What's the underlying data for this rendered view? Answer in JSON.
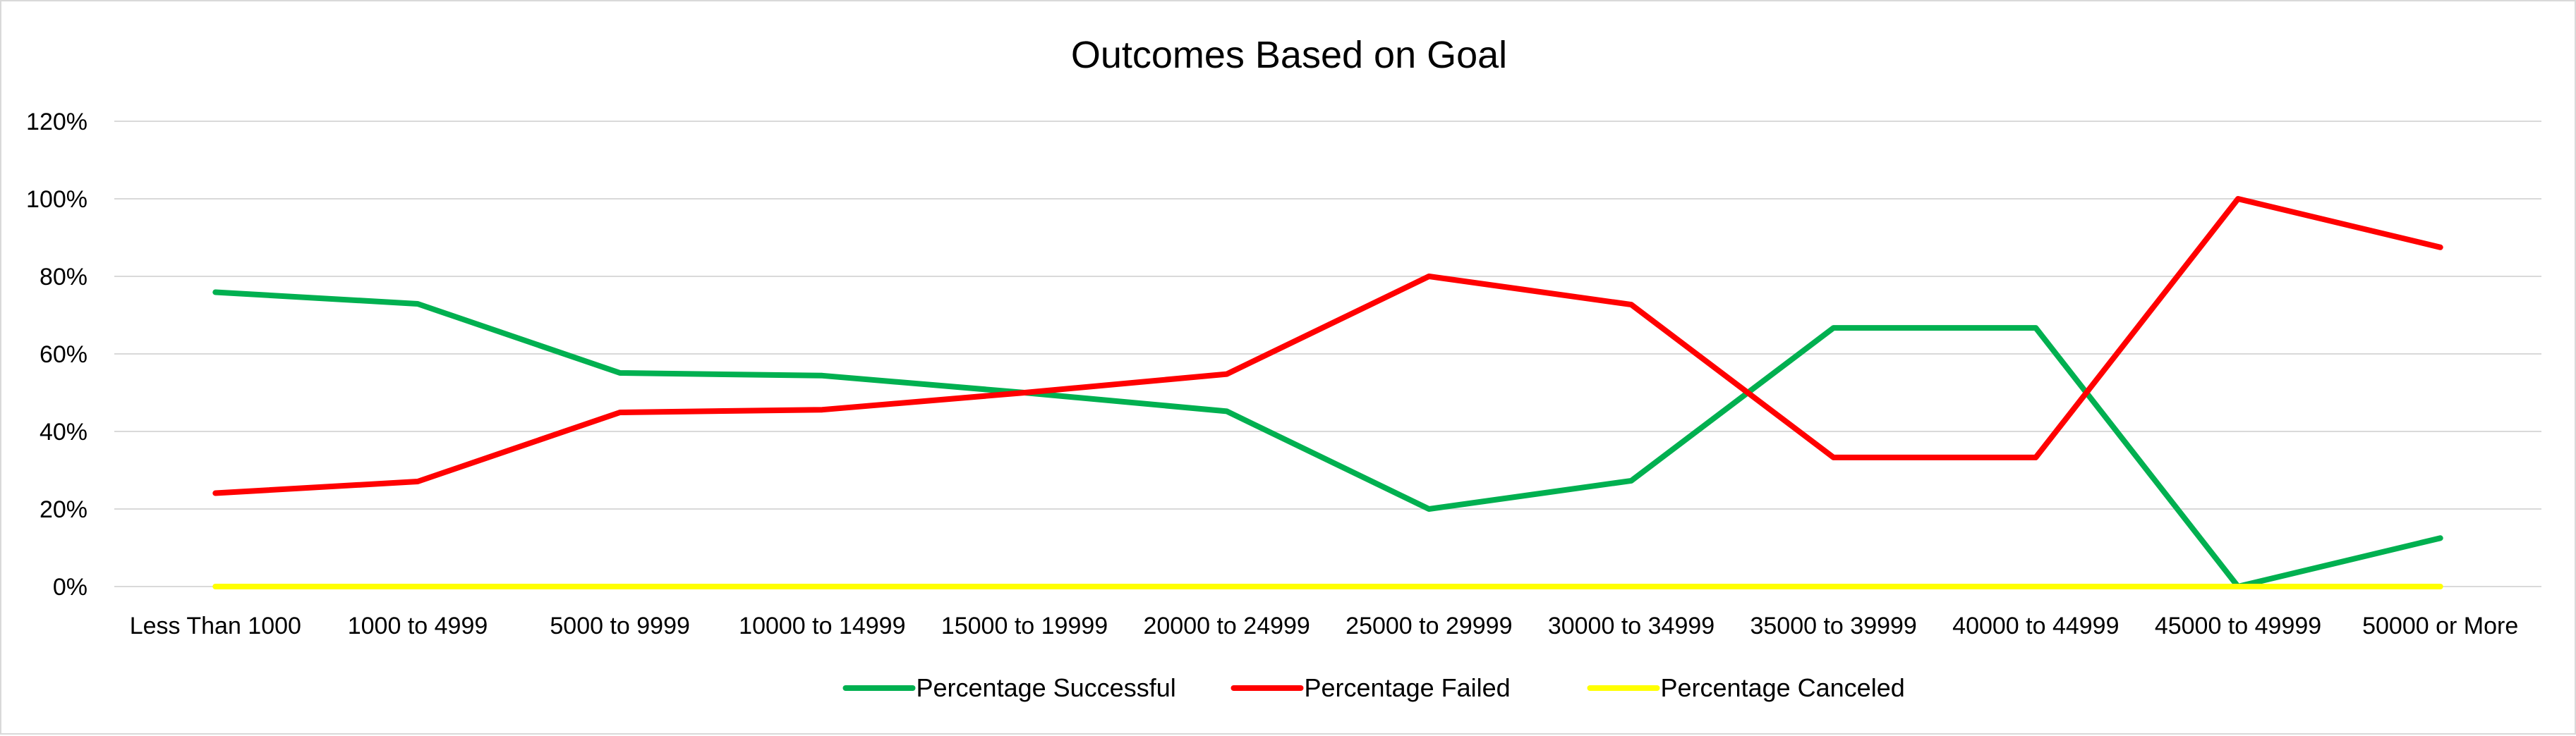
{
  "chart_data": {
    "type": "line",
    "title": "Outcomes Based on Goal",
    "xlabel": "",
    "ylabel": "",
    "categories": [
      "Less Than 1000",
      "1000 to 4999",
      "5000 to 9999",
      "10000 to 14999",
      "15000 to 19999",
      "20000 to 24999",
      "25000 to 29999",
      "30000 to 34999",
      "35000 to 39999",
      "40000 to 44999",
      "45000 to 49999",
      "50000 or More"
    ],
    "y_ticks": [
      "0%",
      "20%",
      "40%",
      "60%",
      "80%",
      "100%",
      "120%"
    ],
    "ylim": [
      0,
      120
    ],
    "grid": true,
    "legend_position": "bottom",
    "series": [
      {
        "name": "Percentage Successful",
        "color": "#00b050",
        "values": [
          75.9,
          72.9,
          55.1,
          54.4,
          50,
          45.2,
          20,
          27.3,
          66.7,
          66.7,
          0,
          12.5
        ]
      },
      {
        "name": "Percentage Failed",
        "color": "#ff0000",
        "values": [
          24.1,
          27.1,
          44.9,
          45.6,
          50,
          54.8,
          80,
          72.7,
          33.3,
          33.3,
          100,
          87.5
        ]
      },
      {
        "name": "Percentage Canceled",
        "color": "#ffff00",
        "values": [
          0,
          0,
          0,
          0,
          0,
          0,
          0,
          0,
          0,
          0,
          0,
          0
        ]
      }
    ]
  }
}
